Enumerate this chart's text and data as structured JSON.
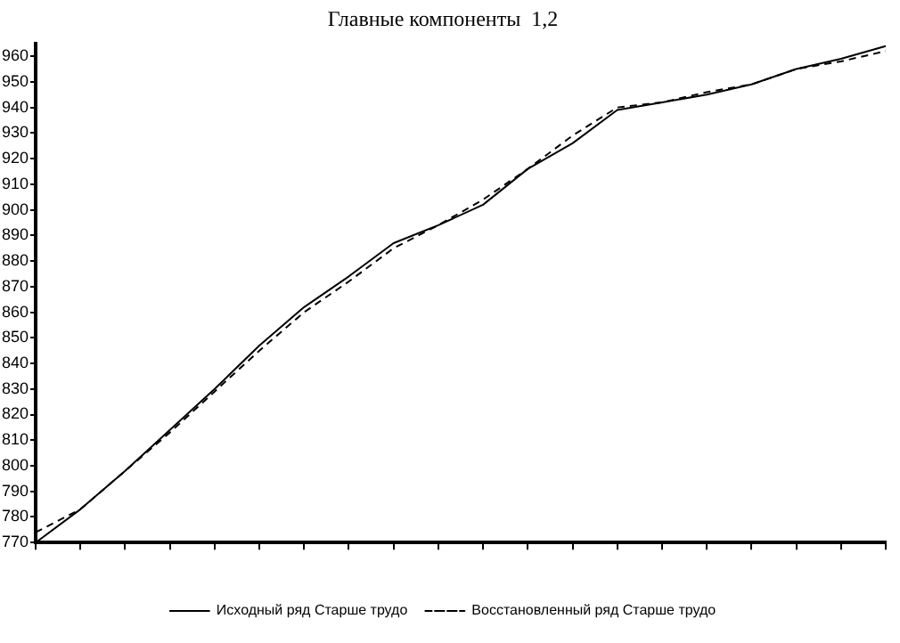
{
  "chart_data": {
    "type": "line",
    "title": "Главные компоненты  1,2",
    "categories": [
      null,
      null,
      null,
      null,
      null,
      null,
      null,
      null,
      null,
      null,
      null,
      null,
      null,
      null,
      null,
      null,
      null,
      null,
      null,
      null
    ],
    "series": [
      {
        "name": "Исходный ряд Старше трудо",
        "color": "#000000",
        "line_style": "solid",
        "values": [
          770,
          783,
          798,
          814,
          830,
          847,
          862,
          874,
          887,
          894,
          902,
          916,
          926,
          939,
          942,
          945,
          949,
          955,
          959,
          964
        ]
      },
      {
        "name": "Восстановленный ряд Старше трудо",
        "color": "#000000",
        "line_style": "dashed",
        "values": [
          774,
          783,
          798,
          813,
          829,
          845,
          860,
          872,
          885,
          894,
          904,
          916,
          929,
          940,
          942,
          946,
          949,
          955,
          958,
          962
        ]
      }
    ],
    "ylim": [
      770,
      965
    ],
    "yticks": [
      770,
      780,
      790,
      800,
      810,
      820,
      830,
      840,
      850,
      860,
      870,
      880,
      890,
      900,
      910,
      920,
      930,
      940,
      950,
      960
    ],
    "grid": false,
    "legend": "bottom",
    "marker": "none"
  }
}
